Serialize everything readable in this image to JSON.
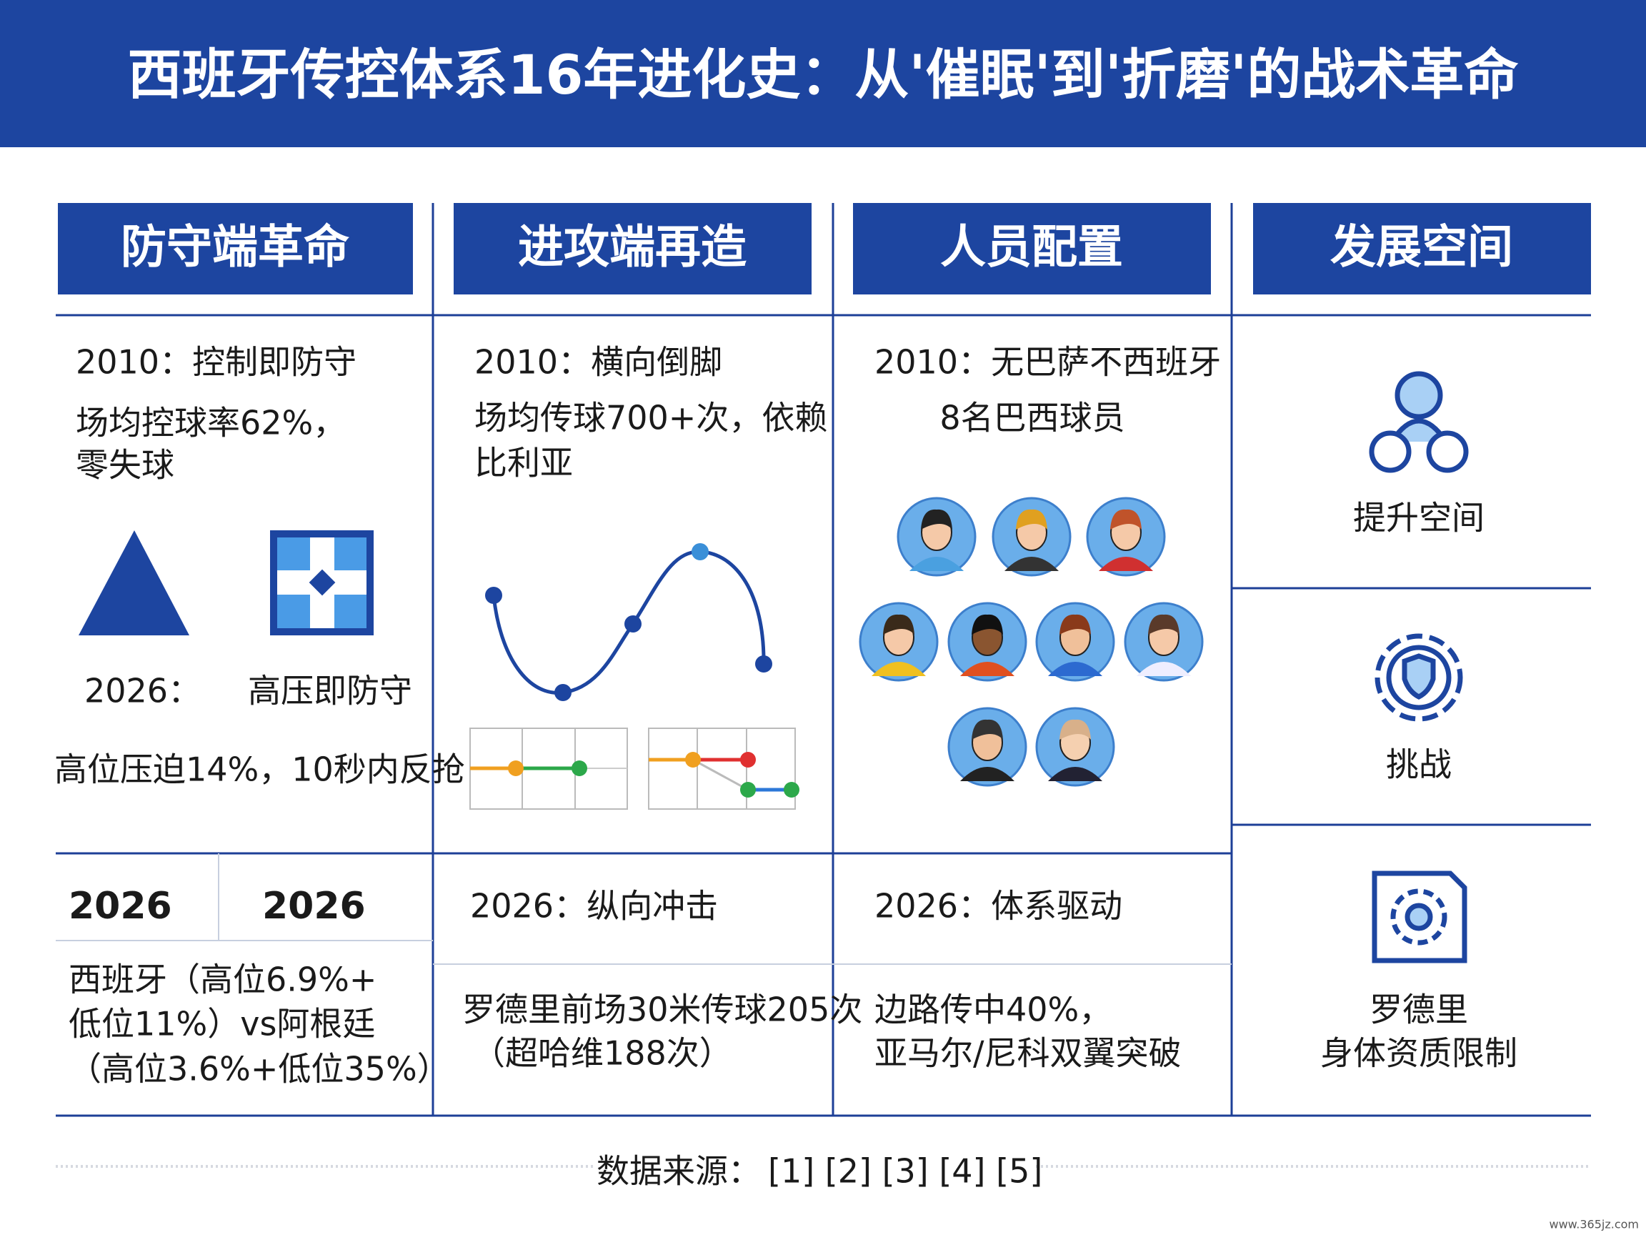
{
  "title": "西班牙传控体系16年进化史：从'催眠'到'折磨'的战术革命",
  "columns": [
    {
      "header": "防守端革命",
      "top": [
        "2010：控制即防守",
        "场均控球率62%，",
        "零失球"
      ],
      "middle": {
        "year": "2026：",
        "label": "高压即防守",
        "detail": "高位压迫14%，10秒内反抢"
      },
      "bottom": {
        "years": [
          "2026",
          "2026"
        ],
        "lines": [
          "西班牙（高位6.9%+",
          "低位11%）vs阿根廷",
          "（高位3.6%+低位35%）"
        ]
      }
    },
    {
      "header": "进攻端再造",
      "top": [
        "2010：横向倒脚",
        "场均传球700+次，依赖",
        "比利亚"
      ],
      "bottom": {
        "heading": "2026：纵向冲击",
        "lines": [
          "罗德里前场30米传球205次",
          "（超哈维188次）"
        ]
      }
    },
    {
      "header": "人员配置",
      "top": [
        "2010：无巴萨不西班牙",
        "8名巴西球员"
      ],
      "bottom": {
        "heading": "2026：体系驱动",
        "lines": [
          "边路传中40%，",
          "亚马尔/尼科双翼突破"
        ]
      }
    },
    {
      "header": "发展空间",
      "items": [
        {
          "label": [
            "提升空间"
          ]
        },
        {
          "label": [
            "挑战"
          ]
        },
        {
          "label": [
            "罗德里",
            "身体资质限制"
          ]
        }
      ]
    }
  ],
  "footer": {
    "label": "数据来源：",
    "refs": "[1] [2] [3] [4] [5]"
  },
  "watermark": "www.365jz.com"
}
